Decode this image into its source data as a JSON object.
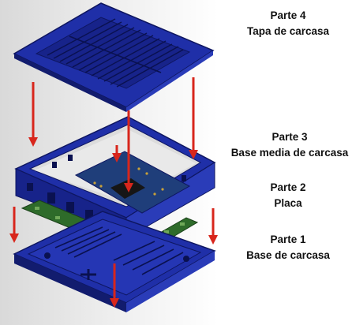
{
  "parts": [
    {
      "number": "Parte 4",
      "name": "Tapa de carcasa"
    },
    {
      "number": "Parte 3",
      "name": "Base media de carcasa"
    },
    {
      "number": "Parte 2",
      "name": "Placa"
    },
    {
      "number": "Parte 1",
      "name": "Base de carcasa"
    }
  ],
  "colors": {
    "case_blue": "#1f2fa8",
    "case_dark": "#121c6e",
    "case_light": "#3549c8",
    "pcb_green": "#2e6b2a",
    "arrow_red": "#d8261c"
  }
}
